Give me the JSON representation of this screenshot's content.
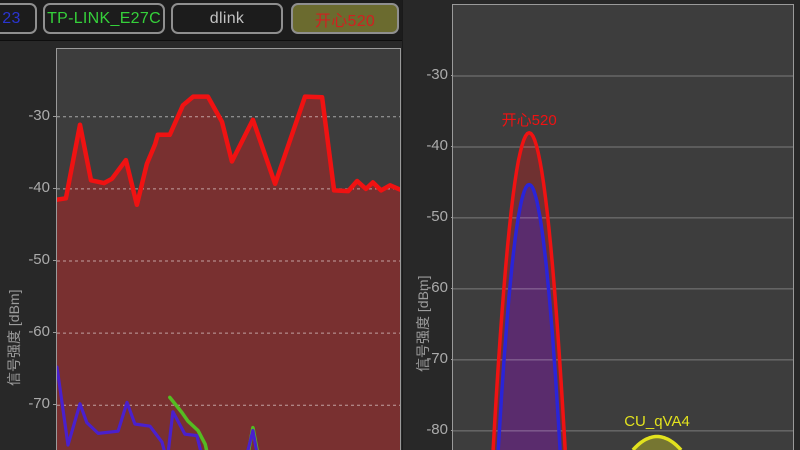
{
  "tab_bar": {
    "tabs": [
      {
        "label": "23",
        "text_color": "#2a35d0",
        "bg_color": "",
        "selected": false
      },
      {
        "label": "TP-LINK_E27C",
        "text_color": "#35d03a",
        "bg_color": "",
        "selected": false
      },
      {
        "label": "dlink",
        "text_color": "#c2c2c2",
        "bg_color": "",
        "selected": false
      },
      {
        "label": "开心520",
        "text_color": "#d02020",
        "bg_color": "#6b6b2f",
        "selected": true
      }
    ]
  },
  "chart_data": [
    {
      "type": "line",
      "title": "",
      "xlabel": "",
      "ylabel": "信号强度 [dBm]",
      "yticks": [
        -30,
        -40,
        -50,
        -60,
        -70
      ],
      "ylim": [
        -76.2,
        -20.6
      ],
      "grid": "dashed",
      "legend": "none",
      "series": [
        {
          "key": "red",
          "name": "开心520",
          "color": "#f01212",
          "fill": "rgba(205,30,30,0.42)",
          "width": 4.5,
          "points": [
            [
              0.0,
              -41.5
            ],
            [
              0.026,
              -41.3
            ],
            [
              0.067,
              -31.1
            ],
            [
              0.099,
              -38.8
            ],
            [
              0.137,
              -39.2
            ],
            [
              0.16,
              -38.6
            ],
            [
              0.201,
              -36.0
            ],
            [
              0.233,
              -42.2
            ],
            [
              0.262,
              -36.5
            ],
            [
              0.286,
              -33.8
            ],
            [
              0.294,
              -32.5
            ],
            [
              0.329,
              -32.5
            ],
            [
              0.367,
              -28.4
            ],
            [
              0.397,
              -27.2
            ],
            [
              0.44,
              -27.2
            ],
            [
              0.481,
              -30.7
            ],
            [
              0.51,
              -36.2
            ],
            [
              0.571,
              -30.4
            ],
            [
              0.636,
              -39.3
            ],
            [
              0.723,
              -27.2
            ],
            [
              0.773,
              -27.3
            ],
            [
              0.808,
              -40.2
            ],
            [
              0.849,
              -40.3
            ],
            [
              0.875,
              -38.9
            ],
            [
              0.901,
              -40.0
            ],
            [
              0.921,
              -39.1
            ],
            [
              0.945,
              -40.2
            ],
            [
              0.971,
              -39.5
            ],
            [
              1.0,
              -40.1
            ]
          ]
        },
        {
          "key": "purple",
          "name": "",
          "color": "#4a20cc",
          "fill": "",
          "width": 3.2,
          "points": [
            [
              0.0,
              -64.7
            ],
            [
              0.032,
              -75.5
            ],
            [
              0.067,
              -69.8
            ],
            [
              0.087,
              -72.4
            ],
            [
              0.12,
              -73.9
            ],
            [
              0.178,
              -73.6
            ],
            [
              0.204,
              -69.6
            ],
            [
              0.227,
              -72.6
            ],
            [
              0.271,
              -72.9
            ],
            [
              0.306,
              -75.1
            ],
            [
              0.321,
              -77.8
            ],
            [
              0.338,
              -70.9
            ],
            [
              0.373,
              -74.0
            ],
            [
              0.408,
              -74.2
            ],
            [
              0.43,
              -78.5
            ],
            [
              0.545,
              -78.5
            ],
            [
              0.571,
              -73.5
            ],
            [
              0.59,
              -78.5
            ]
          ]
        },
        {
          "key": "green",
          "name": "",
          "color": "#55bb22",
          "fill": "",
          "width": 3.5,
          "points": [
            [
              0.329,
              -68.9
            ],
            [
              0.364,
              -71.0
            ],
            [
              0.382,
              -72.2
            ],
            [
              0.411,
              -73.5
            ],
            [
              0.432,
              -75.4
            ],
            [
              0.447,
              -78.5
            ],
            [
              0.55,
              -78.5
            ],
            [
              0.571,
              -73.1
            ],
            [
              0.592,
              -78.5
            ]
          ]
        }
      ]
    },
    {
      "type": "area",
      "title": "",
      "xlabel": "",
      "ylabel": "信号强度 [dBm]",
      "yticks": [
        -30,
        -40,
        -50,
        -60,
        -70,
        -80
      ],
      "ylim": [
        -82.7,
        -20.0
      ],
      "grid": "solid",
      "legend": "none",
      "aps": [
        {
          "key": "red",
          "name": "开心520",
          "color": "#f01212",
          "fill": "rgba(205,30,30,0.35)",
          "center": 0.224,
          "peak_dbm": -38.0,
          "half_width": 0.106,
          "label_visible": true
        },
        {
          "key": "blue",
          "name": "",
          "color": "#2a24d8",
          "fill": "rgba(70,40,170,0.50)",
          "center": 0.224,
          "peak_dbm": -45.3,
          "half_width": 0.091,
          "label_visible": false
        },
        {
          "key": "yellow",
          "name": "CU_qVA4",
          "color": "#e2e21e",
          "fill": "rgba(205,205,35,0.40)",
          "center": 0.6,
          "peak_dbm": -80.8,
          "half_width": 0.071,
          "label_visible": true
        }
      ]
    }
  ]
}
